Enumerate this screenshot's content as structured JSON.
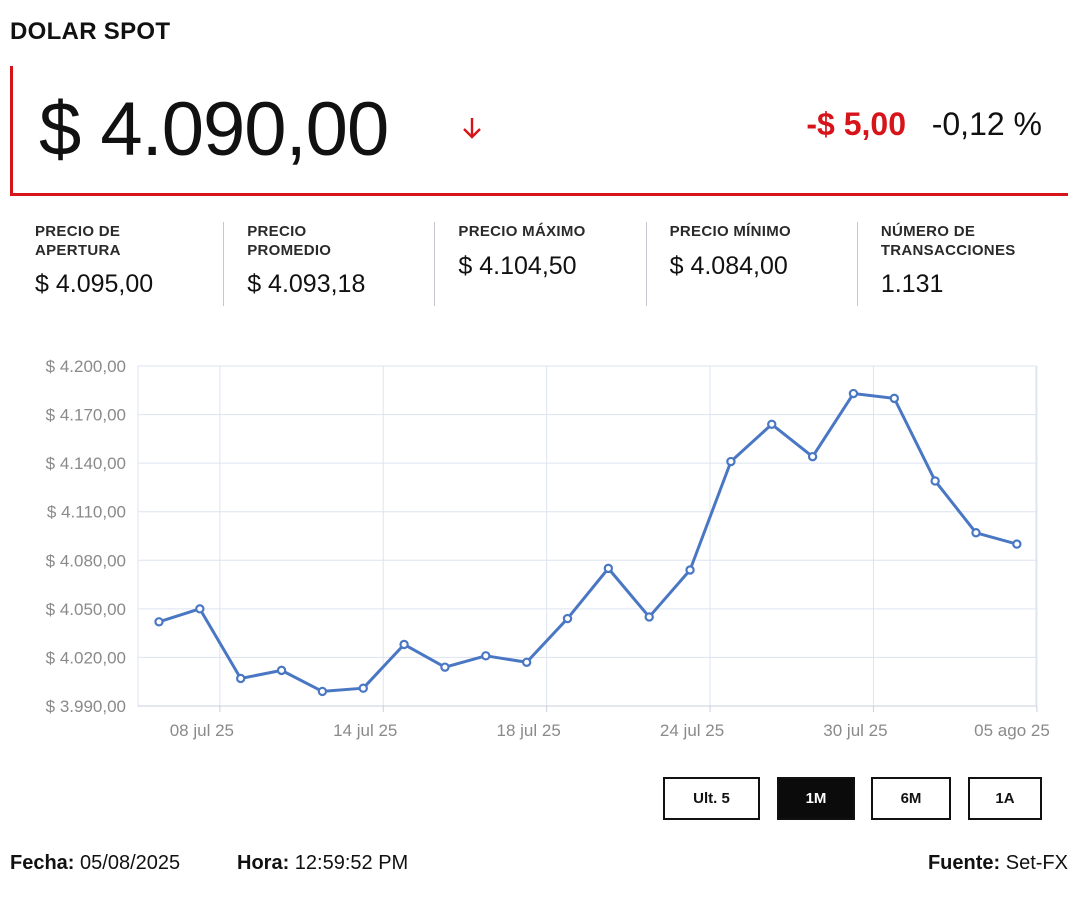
{
  "header": {
    "title": "DOLAR SPOT",
    "price": "$ 4.090,00",
    "change": "-$ 5,00",
    "change_pct": "-0,12 %",
    "direction_icon": "arrow-down-icon",
    "accent_color": "#d7141a"
  },
  "stats": [
    {
      "label": "PRECIO DE\nAPERTURA",
      "value": "$ 4.095,00"
    },
    {
      "label": "PRECIO\nPROMEDIO",
      "value": "$ 4.093,18"
    },
    {
      "label": "PRECIO MÁXIMO",
      "value": "$ 4.104,50"
    },
    {
      "label": "PRECIO MÍNIMO",
      "value": "$ 4.084,00"
    },
    {
      "label": "NÚMERO DE\nTRANSACCIONES",
      "value": "1.131"
    }
  ],
  "chart_data": {
    "type": "line",
    "line_color": "#4a77c3",
    "grid": true,
    "ylim": [
      3990,
      4200
    ],
    "ytick_labels": [
      "$ 4.200,00",
      "$ 4.170,00",
      "$ 4.140,00",
      "$ 4.110,00",
      "$ 4.080,00",
      "$ 4.050,00",
      "$ 4.020,00",
      "$ 3.990,00"
    ],
    "ytick_values": [
      4200,
      4170,
      4140,
      4110,
      4080,
      4050,
      4020,
      3990
    ],
    "xtick_labels": [
      "08 jul 25",
      "14 jul 25",
      "18 jul 25",
      "24 jul 25",
      "30 jul 25",
      "05 ago 25"
    ],
    "xtick_index": [
      1,
      5,
      9,
      13,
      17,
      21
    ],
    "series": [
      {
        "values": [
          4042,
          4050,
          4007,
          4012,
          3999,
          4001,
          4028,
          4014,
          4021,
          4017,
          4044,
          4075,
          4045,
          4074,
          4141,
          4164,
          4144,
          4183,
          4180,
          4129,
          4097,
          4090
        ]
      }
    ]
  },
  "range_buttons": [
    {
      "label": "Ult. 5",
      "active": false
    },
    {
      "label": "1M",
      "active": true
    },
    {
      "label": "6M",
      "active": false
    },
    {
      "label": "1A",
      "active": false
    }
  ],
  "footer": {
    "date_label": "Fecha:",
    "date_value": "05/08/2025",
    "time_label": "Hora:",
    "time_value": "12:59:52 PM",
    "source_label": "Fuente:",
    "source_value": "Set-FX"
  }
}
